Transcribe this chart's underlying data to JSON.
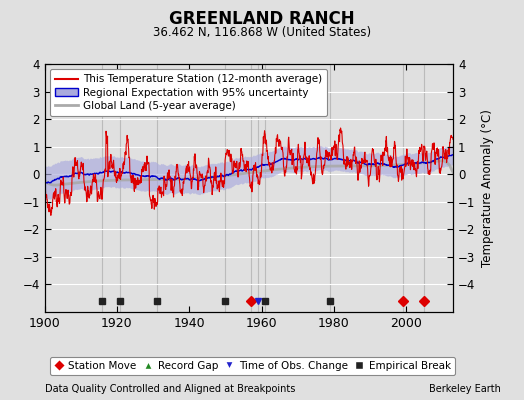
{
  "title": "GREENLAND RANCH",
  "subtitle": "36.462 N, 116.868 W (United States)",
  "ylabel": "Temperature Anomaly (°C)",
  "xlabel_note": "Data Quality Controlled and Aligned at Breakpoints",
  "credit": "Berkeley Earth",
  "ylim": [
    -5,
    4
  ],
  "yticks": [
    -4,
    -3,
    -2,
    -1,
    0,
    1,
    2,
    3,
    4
  ],
  "xlim": [
    1900,
    2013
  ],
  "xticks": [
    1900,
    1920,
    1940,
    1960,
    1980,
    2000
  ],
  "station_moves": [
    1957,
    1999,
    2005
  ],
  "empirical_breaks": [
    1916,
    1921,
    1931,
    1950,
    1961,
    1979
  ],
  "time_obs_changes": [
    1959
  ],
  "record_gaps": [],
  "vlines": [
    1916,
    1921,
    1931,
    1950,
    1957,
    1959,
    1961,
    1979,
    1999,
    2005
  ],
  "line_color_station": "#dd0000",
  "line_color_regional": "#0000cc",
  "shade_color_regional": "#aaaadd",
  "line_color_global": "#aaaaaa",
  "bg_color": "#e0e0e0",
  "plot_bg": "#e0e0e0",
  "legend_bg": "#ffffff",
  "grid_color": "#ffffff",
  "vline_color": "#bbbbbb"
}
